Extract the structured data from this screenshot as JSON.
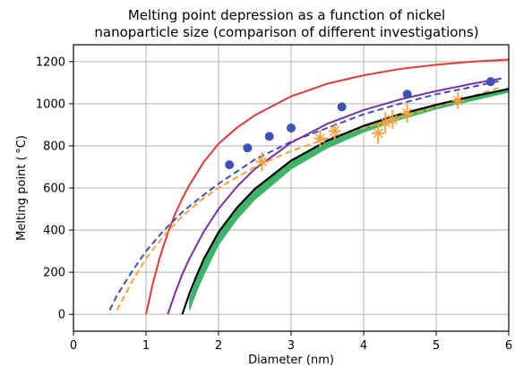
{
  "chart_data": {
    "type": "line",
    "title_line1": "Melting point depression as a function of nickel",
    "title_line2": "nanoparticle size (comparison of different investigations)",
    "xlabel": "Diameter (nm)",
    "ylabel": "Melting point ( °C)",
    "xlim": [
      0,
      6
    ],
    "ylim": [
      -80,
      1280
    ],
    "xticks": [
      0,
      1,
      2,
      3,
      4,
      5,
      6
    ],
    "yticks": [
      0,
      200,
      400,
      600,
      800,
      1000,
      1200
    ],
    "grid": true,
    "series": [
      {
        "style": "solid",
        "color": "#e53935",
        "width": 2,
        "x": [
          1.0,
          1.1,
          1.2,
          1.3,
          1.4,
          1.5,
          1.6,
          1.8,
          2.0,
          2.25,
          2.5,
          3.0,
          3.5,
          4.0,
          4.5,
          5.0,
          5.5,
          6.0
        ],
        "y": [
          0,
          155,
          280,
          385,
          475,
          550,
          615,
          725,
          810,
          885,
          945,
          1035,
          1095,
          1135,
          1165,
          1185,
          1200,
          1210
        ]
      },
      {
        "style": "dashed",
        "color": "#3f51b5",
        "width": 2,
        "x": [
          0.5,
          0.6,
          0.8,
          1.0,
          1.25,
          1.5,
          1.75,
          2.0,
          2.5,
          3.0,
          3.5,
          4.0,
          4.5,
          5.0,
          5.5,
          5.9
        ],
        "y": [
          20,
          90,
          200,
          300,
          400,
          485,
          555,
          620,
          735,
          820,
          885,
          950,
          1000,
          1045,
          1080,
          1110
        ]
      },
      {
        "style": "dashed",
        "color": "#f5a340",
        "width": 2,
        "x": [
          0.6,
          0.8,
          1.0,
          1.25,
          1.5,
          1.75,
          2.0,
          2.5,
          3.0,
          3.5,
          4.0,
          4.5,
          5.0,
          5.5,
          5.9
        ],
        "y": [
          20,
          150,
          265,
          375,
          465,
          540,
          600,
          700,
          775,
          835,
          885,
          935,
          985,
          1035,
          1080
        ]
      },
      {
        "style": "solid",
        "color": "#7b2fa8",
        "width": 2,
        "x": [
          1.3,
          1.4,
          1.5,
          1.6,
          1.8,
          2.0,
          2.25,
          2.5,
          3.0,
          3.5,
          4.0,
          4.5,
          5.0,
          5.5,
          5.9
        ],
        "y": [
          0,
          100,
          190,
          265,
          395,
          500,
          605,
          690,
          815,
          905,
          970,
          1020,
          1060,
          1095,
          1120
        ]
      },
      {
        "style": "solid",
        "color": "#000000",
        "width": 2.2,
        "x": [
          1.5,
          1.6,
          1.7,
          1.8,
          2.0,
          2.25,
          2.5,
          3.0,
          3.5,
          4.0,
          4.5,
          5.0,
          5.5,
          6.0
        ],
        "y": [
          0,
          100,
          185,
          265,
          390,
          505,
          595,
          730,
          825,
          895,
          950,
          995,
          1035,
          1070
        ]
      }
    ],
    "band": {
      "color": "#3fb36a",
      "x": [
        1.6,
        1.7,
        1.8,
        2.0,
        2.25,
        2.5,
        3.0,
        3.5,
        4.0,
        4.5,
        5.0,
        5.5,
        6.0
      ],
      "y_low": [
        20,
        110,
        190,
        330,
        450,
        545,
        690,
        790,
        865,
        925,
        975,
        1015,
        1055
      ],
      "y_high": [
        75,
        165,
        250,
        380,
        495,
        590,
        725,
        820,
        890,
        945,
        990,
        1030,
        1075
      ]
    },
    "points_blue": {
      "color": "#3f51b5",
      "x": [
        2.15,
        2.4,
        2.7,
        3.0,
        3.7,
        4.6,
        5.75
      ],
      "y": [
        710,
        790,
        845,
        885,
        985,
        1045,
        1105
      ]
    },
    "points_orange": {
      "color": "#f5a340",
      "x": [
        2.6,
        3.4,
        3.6,
        4.2,
        4.3,
        4.4,
        4.6,
        5.3
      ],
      "y": [
        725,
        835,
        870,
        860,
        910,
        925,
        955,
        1015
      ],
      "yerr": [
        45,
        40,
        40,
        50,
        50,
        45,
        45,
        40
      ]
    }
  }
}
